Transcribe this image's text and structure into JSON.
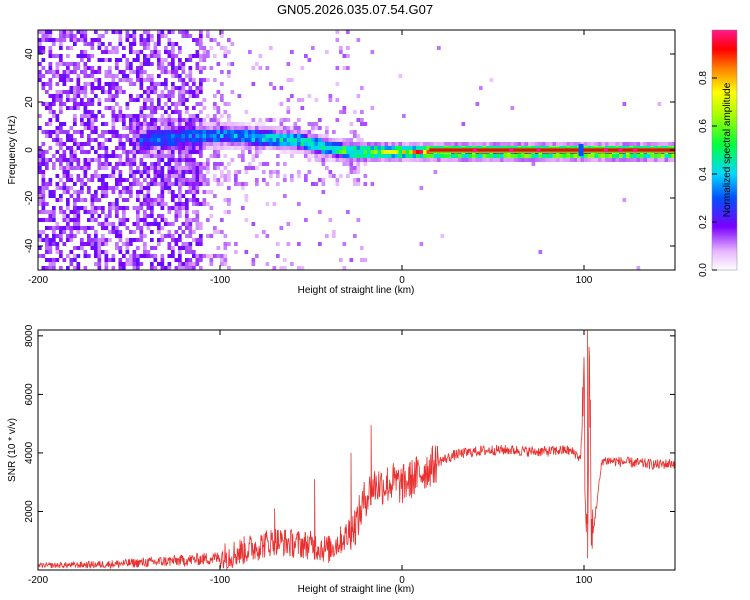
{
  "title": "GN05.2026.035.07.54.G07",
  "chart_data": [
    {
      "type": "heatmap",
      "xlabel": "Height of straight line (km)",
      "ylabel": "Frequency (Hz)",
      "xlim": [
        -200,
        150
      ],
      "ylim": [
        -50,
        50
      ],
      "xticks": [
        -200,
        -100,
        0,
        100
      ],
      "yticks": [
        -40,
        -20,
        0,
        20,
        40
      ],
      "colorbar": {
        "label": "Normalized spectral amplitude",
        "range": [
          0,
          1
        ],
        "ticks": [
          0.0,
          0.2,
          0.4,
          0.6,
          0.8
        ],
        "tick_labels": [
          "0.0",
          "0.2",
          "0.4",
          "0.6",
          "0.8"
        ]
      },
      "description_points": [
        {
          "x": -200,
          "band_center_hz": 0,
          "amplitude": 0.1
        },
        {
          "x": -140,
          "band_center_hz": 5,
          "amplitude": 0.3
        },
        {
          "x": -100,
          "band_center_hz": 7,
          "amplitude": 0.35
        },
        {
          "x": -60,
          "band_center_hz": 5,
          "amplitude": 0.45
        },
        {
          "x": -30,
          "band_center_hz": 0,
          "amplitude": 0.55
        },
        {
          "x": 0,
          "band_center_hz": 0,
          "amplitude": 0.7
        },
        {
          "x": 20,
          "band_center_hz": 0,
          "amplitude": 0.95
        },
        {
          "x": 100,
          "band_center_hz": 0,
          "amplitude": 0.95
        },
        {
          "x": 150,
          "band_center_hz": 0,
          "amplitude": 0.95
        }
      ]
    },
    {
      "type": "line",
      "xlabel": "Height of straight line (km)",
      "ylabel": "SNR (10 * v/v)",
      "xlim": [
        -200,
        150
      ],
      "ylim": [
        0,
        8200
      ],
      "xticks": [
        -200,
        -100,
        0,
        100
      ],
      "yticks": [
        2000,
        4000,
        6000,
        8000
      ],
      "color": "#e8312f",
      "series": [
        {
          "name": "SNR",
          "x": [
            -200,
            -180,
            -160,
            -140,
            -120,
            -100,
            -90,
            -80,
            -70,
            -60,
            -50,
            -40,
            -30,
            -25,
            -20,
            -15,
            -10,
            -5,
            0,
            10,
            20,
            30,
            40,
            50,
            60,
            70,
            80,
            90,
            95,
            98,
            100,
            101,
            102,
            103,
            104,
            110,
            120,
            130,
            140,
            150
          ],
          "values": [
            150,
            170,
            200,
            260,
            330,
            420,
            600,
            800,
            1000,
            900,
            850,
            700,
            1200,
            1600,
            2500,
            2900,
            2900,
            3000,
            2900,
            3300,
            3700,
            3950,
            4050,
            4100,
            4100,
            4050,
            4050,
            4100,
            4000,
            3800,
            6000,
            2000,
            900,
            8100,
            800,
            3750,
            3700,
            3650,
            3600,
            3650
          ],
          "spikes": [
            {
              "x": -70,
              "value": 2100
            },
            {
              "x": -48,
              "value": 3100
            },
            {
              "x": -28,
              "value": 4000
            },
            {
              "x": -17,
              "value": 4950
            },
            {
              "x": 102,
              "value": 8200
            },
            {
              "x": 102,
              "value": 400
            }
          ]
        }
      ]
    }
  ]
}
